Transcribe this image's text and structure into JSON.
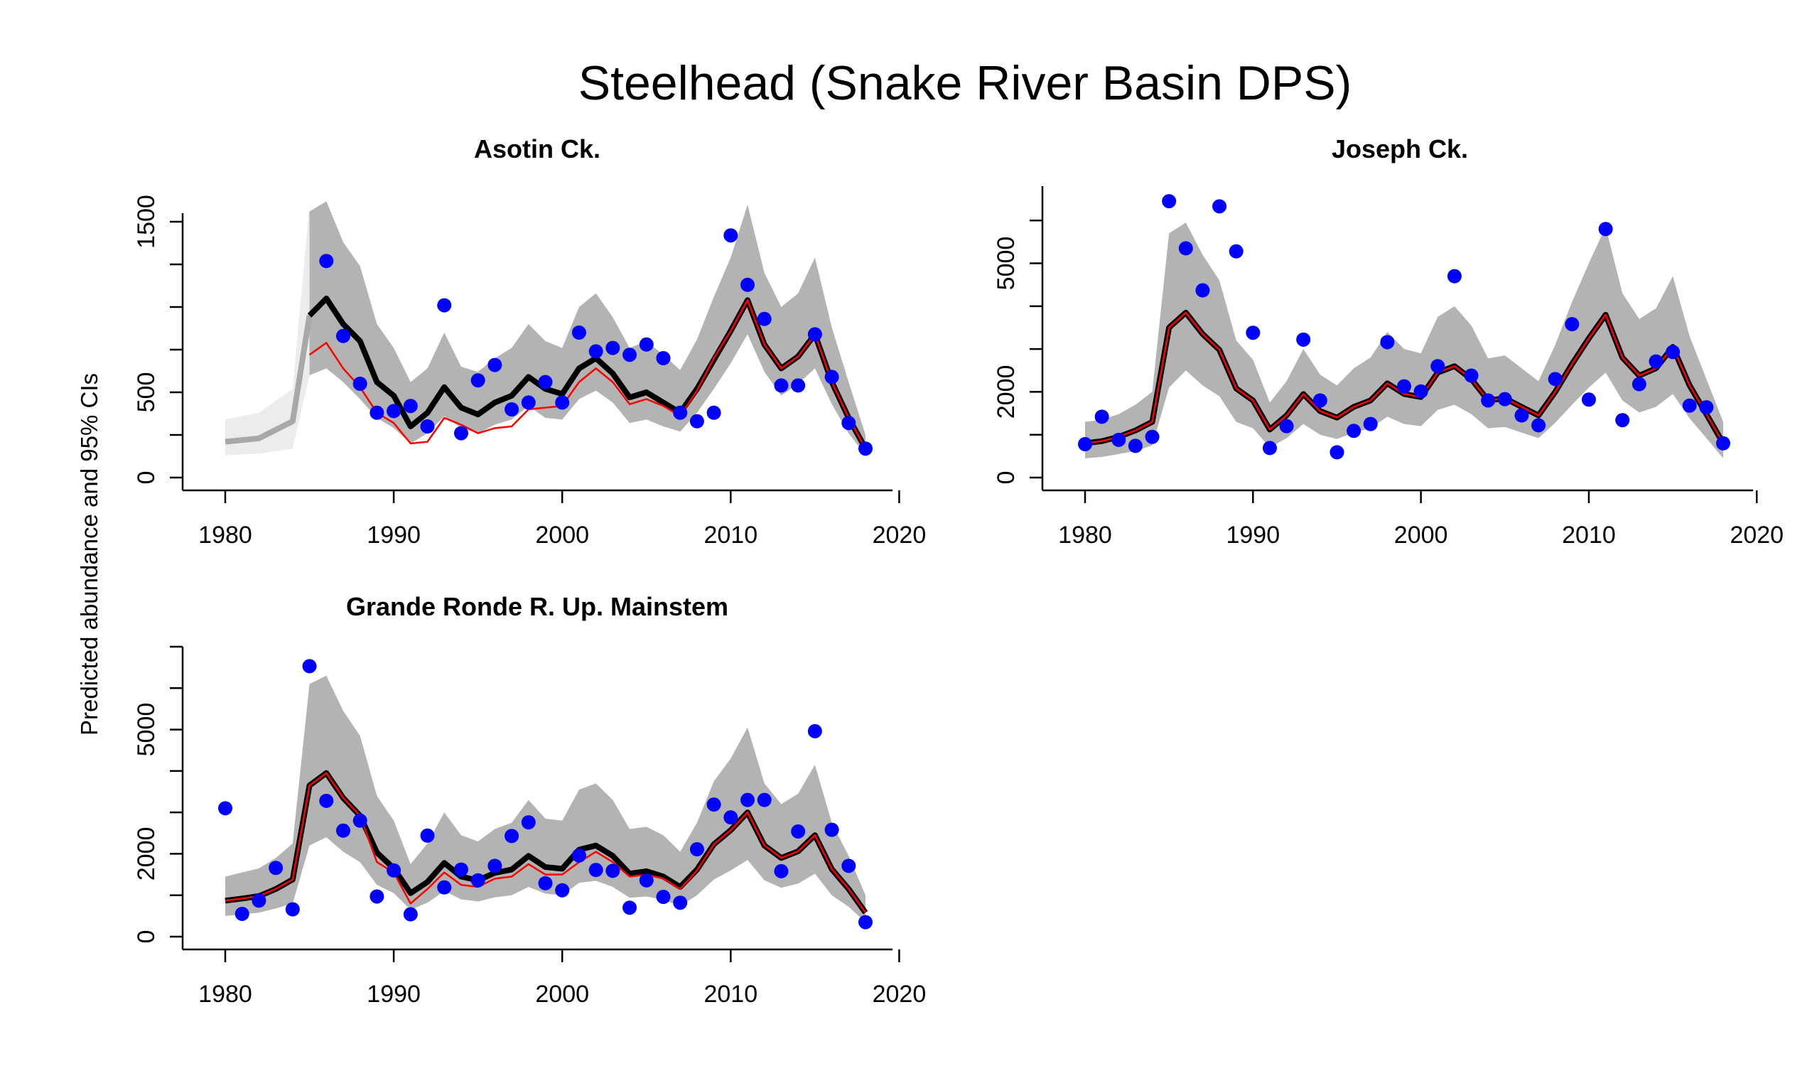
{
  "figure": {
    "title": "Steelhead (Snake River Basin DPS)",
    "ylabel": "Predicted abundance and 95% CIs"
  },
  "colors": {
    "band": "#b3b3b3",
    "band_early": "#ececec",
    "line_early": "#a8a8a8",
    "main_line": "#000000",
    "red_line": "#ff0000",
    "points": "#0000ff"
  },
  "chart_data": [
    {
      "type": "line",
      "title": "Asotin Ck.",
      "xlim": [
        1980,
        2018
      ],
      "ylim": [
        0,
        1550
      ],
      "xticks": [
        1980,
        1990,
        2000,
        2010,
        2020
      ],
      "yticks": [
        0,
        250,
        500,
        750,
        1000,
        1250,
        1500
      ],
      "ytick_labels": [
        "0",
        "",
        "500",
        "",
        "",
        "",
        "1500"
      ],
      "early_years": [
        1980,
        1982,
        1984,
        1985
      ],
      "early_median": [
        210,
        230,
        330,
        950
      ],
      "early_lower": [
        130,
        140,
        170,
        600
      ],
      "early_upper": [
        340,
        380,
        520,
        1600
      ],
      "years": [
        1985,
        1986,
        1987,
        1988,
        1989,
        1990,
        1991,
        1992,
        1993,
        1994,
        1995,
        1996,
        1997,
        1998,
        1999,
        2000,
        2001,
        2002,
        2003,
        2004,
        2005,
        2006,
        2007,
        2008,
        2009,
        2010,
        2011,
        2012,
        2013,
        2014,
        2015,
        2016,
        2017,
        2018
      ],
      "median": [
        950,
        1050,
        900,
        800,
        560,
        480,
        300,
        380,
        530,
        410,
        370,
        440,
        480,
        590,
        520,
        490,
        640,
        700,
        610,
        470,
        500,
        440,
        380,
        520,
        690,
        860,
        1040,
        780,
        640,
        710,
        840,
        560,
        350,
        170
      ],
      "lower": [
        600,
        640,
        560,
        460,
        350,
        290,
        200,
        260,
        360,
        290,
        260,
        310,
        340,
        420,
        350,
        340,
        460,
        510,
        440,
        320,
        340,
        300,
        270,
        380,
        520,
        670,
        840,
        620,
        480,
        550,
        640,
        430,
        260,
        130
      ],
      "upper": [
        1560,
        1620,
        1380,
        1240,
        900,
        760,
        560,
        640,
        850,
        650,
        620,
        700,
        760,
        900,
        800,
        760,
        1000,
        1080,
        940,
        760,
        800,
        720,
        630,
        810,
        1060,
        1290,
        1600,
        1200,
        1000,
        1080,
        1290,
        880,
        560,
        250
      ],
      "red_years": [
        1985,
        1986,
        1987,
        1988,
        1989,
        1990,
        1991,
        1992,
        1993,
        1994,
        1995,
        1996,
        1997,
        1998,
        1999,
        2000,
        2001,
        2002,
        2003,
        2004,
        2005,
        2006,
        2007,
        2008,
        2009,
        2010,
        2011,
        2012,
        2013,
        2014,
        2015,
        2016,
        2017,
        2018
      ],
      "red": [
        720,
        790,
        640,
        530,
        380,
        320,
        200,
        210,
        350,
        310,
        260,
        290,
        300,
        400,
        410,
        420,
        560,
        640,
        560,
        430,
        460,
        420,
        360,
        510,
        700,
        860,
        1040,
        780,
        640,
        710,
        840,
        560,
        350,
        170
      ],
      "obs_years": [
        1986,
        1987,
        1988,
        1989,
        1990,
        1991,
        1992,
        1993,
        1994,
        1995,
        1996,
        1997,
        1998,
        1999,
        2000,
        2001,
        2002,
        2003,
        2004,
        2005,
        2006,
        2007,
        2008,
        2009,
        2010,
        2011,
        2012,
        2013,
        2014,
        2015,
        2016,
        2017,
        2018
      ],
      "obs": [
        1270,
        830,
        550,
        380,
        390,
        420,
        300,
        1010,
        260,
        570,
        660,
        400,
        440,
        560,
        440,
        850,
        740,
        760,
        720,
        780,
        700,
        380,
        330,
        380,
        1420,
        1130,
        930,
        540,
        540,
        840,
        590,
        320,
        170
      ]
    },
    {
      "type": "line",
      "title": "Joseph Ck.",
      "xlim": [
        1980,
        2018
      ],
      "ylim": [
        0,
        6800
      ],
      "xticks": [
        1980,
        1990,
        2000,
        2010,
        2020
      ],
      "yticks": [
        0,
        1000,
        2000,
        3000,
        4000,
        5000,
        6000,
        7000
      ],
      "ytick_labels": [
        "0",
        "",
        "2000",
        "",
        "",
        "5000",
        "",
        ""
      ],
      "years": [
        1980,
        1981,
        1982,
        1983,
        1984,
        1985,
        1986,
        1987,
        1988,
        1989,
        1990,
        1991,
        1992,
        1993,
        1994,
        1995,
        1996,
        1997,
        1998,
        1999,
        2000,
        2001,
        2002,
        2003,
        2004,
        2005,
        2006,
        2007,
        2008,
        2009,
        2010,
        2011,
        2012,
        2013,
        2014,
        2015,
        2016,
        2017,
        2018
      ],
      "median": [
        800,
        850,
        950,
        1100,
        1300,
        3500,
        3850,
        3350,
        2980,
        2080,
        1800,
        1120,
        1450,
        1950,
        1550,
        1400,
        1650,
        1800,
        2200,
        1950,
        1880,
        2450,
        2600,
        2300,
        1800,
        1850,
        1650,
        1450,
        2000,
        2650,
        3250,
        3800,
        2800,
        2380,
        2550,
        3050,
        2150,
        1480,
        800
      ],
      "lower": [
        450,
        480,
        550,
        620,
        750,
        2100,
        2500,
        2150,
        1900,
        1300,
        1150,
        700,
        920,
        1250,
        1000,
        900,
        1050,
        1150,
        1420,
        1250,
        1200,
        1580,
        1700,
        1480,
        1150,
        1180,
        1050,
        920,
        1280,
        1700,
        2100,
        2450,
        1800,
        1520,
        1650,
        1950,
        1380,
        920,
        450
      ],
      "upper": [
        1300,
        1350,
        1480,
        1700,
        2000,
        5700,
        5950,
        5200,
        4600,
        3200,
        2750,
        1750,
        2250,
        3000,
        2400,
        2150,
        2550,
        2800,
        3400,
        3000,
        2900,
        3750,
        4000,
        3550,
        2780,
        2850,
        2550,
        2250,
        3100,
        4100,
        5000,
        5850,
        4300,
        3700,
        3950,
        4700,
        3300,
        2300,
        1300
      ],
      "red_years": [
        1980,
        1981,
        1982,
        1983,
        1984,
        1985,
        1986,
        1987,
        1988,
        1989,
        1990,
        1991,
        1992,
        1993,
        1994,
        1995,
        1996,
        1997,
        1998,
        1999,
        2000,
        2001,
        2002,
        2003,
        2004,
        2005,
        2006,
        2007,
        2008,
        2009,
        2010,
        2011,
        2012,
        2013,
        2014,
        2015,
        2016,
        2017,
        2018
      ],
      "red": [
        800,
        850,
        950,
        1100,
        1300,
        3500,
        3850,
        3350,
        2980,
        2080,
        1800,
        1120,
        1450,
        1950,
        1550,
        1400,
        1650,
        1800,
        2200,
        1950,
        1880,
        2450,
        2600,
        2300,
        1800,
        1850,
        1650,
        1450,
        2000,
        2650,
        3250,
        3800,
        2800,
        2380,
        2550,
        3050,
        2150,
        1480,
        800
      ],
      "obs_years": [
        1980,
        1981,
        1982,
        1983,
        1984,
        1985,
        1986,
        1987,
        1988,
        1989,
        1990,
        1991,
        1992,
        1993,
        1994,
        1995,
        1996,
        1997,
        1998,
        1999,
        2000,
        2001,
        2002,
        2003,
        2004,
        2005,
        2006,
        2007,
        2008,
        2009,
        2010,
        2011,
        2012,
        2013,
        2014,
        2015,
        2016,
        2017,
        2018
      ],
      "obs": [
        780,
        1420,
        880,
        740,
        950,
        6450,
        5350,
        4370,
        6330,
        5280,
        3380,
        690,
        1200,
        3220,
        1800,
        590,
        1090,
        1250,
        3160,
        2130,
        2010,
        2600,
        4700,
        2380,
        1800,
        1830,
        1450,
        1220,
        2300,
        3580,
        1820,
        5800,
        1340,
        2180,
        2710,
        2930,
        1680,
        1640,
        800
      ]
    },
    {
      "type": "line",
      "title": "Grande Ronde R. Up. Mainstem",
      "xlim": [
        1980,
        2018
      ],
      "ylim": [
        0,
        7000
      ],
      "xticks": [
        1980,
        1990,
        2000,
        2010,
        2020
      ],
      "yticks": [
        0,
        1000,
        2000,
        3000,
        4000,
        5000,
        6000,
        7000
      ],
      "ytick_labels": [
        "0",
        "",
        "2000",
        "",
        "",
        "5000",
        "",
        ""
      ],
      "years": [
        1980,
        1981,
        1982,
        1983,
        1984,
        1985,
        1986,
        1987,
        1988,
        1989,
        1990,
        1991,
        1992,
        1993,
        1994,
        1995,
        1996,
        1997,
        1998,
        1999,
        2000,
        2001,
        2002,
        2003,
        2004,
        2005,
        2006,
        2007,
        2008,
        2009,
        2010,
        2011,
        2012,
        2013,
        2014,
        2015,
        2016,
        2017,
        2018
      ],
      "median": [
        870,
        920,
        980,
        1150,
        1380,
        3650,
        3950,
        3350,
        2920,
        2030,
        1650,
        1050,
        1320,
        1780,
        1450,
        1360,
        1540,
        1620,
        1950,
        1680,
        1640,
        2100,
        2200,
        1950,
        1520,
        1580,
        1450,
        1200,
        1620,
        2230,
        2570,
        3000,
        2200,
        1900,
        2060,
        2450,
        1630,
        1150,
        580
      ],
      "lower": [
        500,
        540,
        580,
        680,
        800,
        2200,
        2400,
        2050,
        1800,
        1250,
        1050,
        650,
        820,
        1100,
        900,
        850,
        950,
        1000,
        1200,
        1040,
        1000,
        1300,
        1350,
        1200,
        940,
        970,
        890,
        740,
        1000,
        1380,
        1600,
        1850,
        1360,
        1180,
        1280,
        1520,
        1000,
        720,
        350
      ],
      "upper": [
        1450,
        1550,
        1650,
        1900,
        2250,
        6100,
        6300,
        5450,
        4850,
        3400,
        2800,
        1750,
        2250,
        3000,
        2450,
        2300,
        2600,
        2750,
        3300,
        2850,
        2800,
        3550,
        3700,
        3300,
        2600,
        2650,
        2450,
        2050,
        2750,
        3750,
        4300,
        5050,
        3700,
        3200,
        3450,
        4150,
        2750,
        1950,
        1000
      ],
      "red_years": [
        1980,
        1981,
        1982,
        1983,
        1984,
        1985,
        1986,
        1987,
        1988,
        1989,
        1990,
        1991,
        1992,
        1993,
        1994,
        1995,
        1996,
        1997,
        1998,
        1999,
        2000,
        2001,
        2002,
        2003,
        2004,
        2005,
        2006,
        2007,
        2008,
        2009,
        2010,
        2011,
        2012,
        2013,
        2014,
        2015,
        2016,
        2017,
        2018
      ],
      "red": [
        870,
        920,
        980,
        1150,
        1380,
        3650,
        3950,
        3350,
        2920,
        1800,
        1550,
        800,
        1150,
        1550,
        1250,
        1200,
        1400,
        1450,
        1750,
        1500,
        1500,
        1800,
        2050,
        1800,
        1450,
        1500,
        1400,
        1150,
        1600,
        2230,
        2570,
        3000,
        2200,
        1900,
        2060,
        2450,
        1630,
        1150,
        580
      ],
      "obs_years": [
        1980,
        1981,
        1982,
        1983,
        1984,
        1985,
        1986,
        1987,
        1988,
        1989,
        1990,
        1991,
        1992,
        1993,
        1994,
        1995,
        1996,
        1997,
        1998,
        1999,
        2000,
        2001,
        2002,
        2003,
        2004,
        2005,
        2006,
        2007,
        2008,
        2009,
        2010,
        2011,
        2012,
        2013,
        2014,
        2015,
        2016,
        2017,
        2018
      ],
      "obs": [
        3100,
        550,
        870,
        1660,
        660,
        6530,
        3280,
        2560,
        2800,
        970,
        1600,
        540,
        2440,
        1190,
        1620,
        1360,
        1710,
        2430,
        2760,
        1290,
        1120,
        1960,
        1610,
        1590,
        700,
        1360,
        960,
        820,
        2110,
        3190,
        2880,
        3300,
        3300,
        1580,
        2540,
        4960,
        2580,
        1710,
        350
      ]
    }
  ]
}
